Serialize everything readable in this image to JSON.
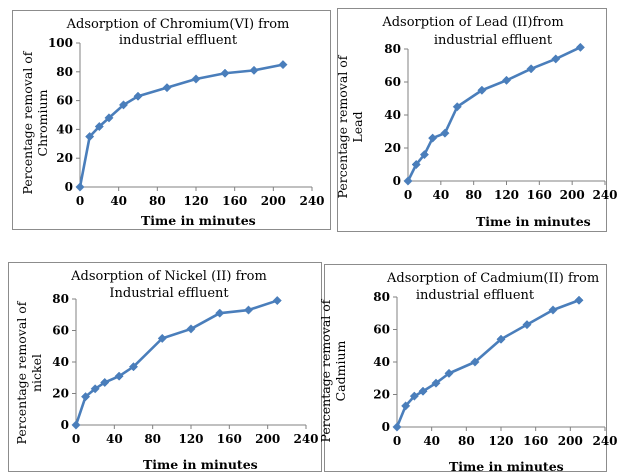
{
  "chart_data": [
    {
      "type": "line",
      "title_line1": "Adsorption of Chromium(VI) from",
      "title_line2": "industrial effluent",
      "xlabel": "Time in minutes",
      "ylabel_line1": "Percentage removal of",
      "ylabel_line2": "Chromium",
      "x": [
        0,
        10,
        20,
        30,
        45,
        60,
        90,
        120,
        150,
        180,
        210
      ],
      "y": [
        0,
        35,
        42,
        48,
        57,
        63,
        69,
        75,
        79,
        81,
        85
      ],
      "xlim": [
        0,
        240
      ],
      "ylim": [
        0,
        100
      ],
      "xticks": [
        "0",
        "40",
        "80",
        "120",
        "160",
        "200",
        "240"
      ],
      "yticks": [
        "0",
        "20",
        "40",
        "60",
        "80",
        "100"
      ],
      "color": "#4a7ebb",
      "grid": false
    },
    {
      "type": "line",
      "title_line1": "Adsorption of Lead (II)from",
      "title_line2": "industrial effluent",
      "xlabel": "Time in minutes",
      "ylabel_line1": "Percentage removal of",
      "ylabel_line2": "Lead",
      "x": [
        0,
        10,
        20,
        30,
        45,
        60,
        90,
        120,
        150,
        180,
        210
      ],
      "y": [
        0,
        10,
        16,
        26,
        29,
        45,
        55,
        61,
        68,
        74,
        81
      ],
      "xlim": [
        0,
        240
      ],
      "ylim": [
        0,
        80
      ],
      "xticks": [
        "0",
        "40",
        "80",
        "120",
        "160",
        "200",
        "240"
      ],
      "yticks": [
        "0",
        "20",
        "40",
        "60",
        "80"
      ],
      "color": "#4a7ebb",
      "grid": false
    },
    {
      "type": "line",
      "title_line1": "Adsorption of Nickel (II) from",
      "title_line2": "Industrial effluent",
      "xlabel": "Time in minutes",
      "ylabel_line1": "Percentage removal of",
      "ylabel_line2": "nickel",
      "x": [
        0,
        10,
        20,
        30,
        45,
        60,
        90,
        120,
        150,
        180,
        210
      ],
      "y": [
        0,
        18,
        23,
        27,
        31,
        37,
        55,
        61,
        71,
        73,
        79
      ],
      "xlim": [
        0,
        240
      ],
      "ylim": [
        0,
        80
      ],
      "xticks": [
        "0",
        "40",
        "80",
        "120",
        "160",
        "200",
        "240"
      ],
      "yticks": [
        "0",
        "20",
        "40",
        "60",
        "80"
      ],
      "color": "#4a7ebb",
      "grid": false
    },
    {
      "type": "line",
      "title_line1": "Adsorption of Cadmium(II) from",
      "title_line2": "industrial effluent",
      "xlabel": "Time in minutes",
      "ylabel_line1": "Percentage removal of",
      "ylabel_line2": "Cadmium",
      "x": [
        0,
        10,
        20,
        30,
        45,
        60,
        90,
        120,
        150,
        180,
        210
      ],
      "y": [
        0,
        13,
        19,
        22,
        27,
        33,
        40,
        54,
        63,
        72,
        78
      ],
      "xlim": [
        0,
        240
      ],
      "ylim": [
        0,
        80
      ],
      "xticks": [
        "0",
        "40",
        "80",
        "120",
        "160",
        "200",
        "240"
      ],
      "yticks": [
        "0",
        "20",
        "40",
        "60",
        "80"
      ],
      "color": "#4a7ebb",
      "grid": false
    }
  ]
}
